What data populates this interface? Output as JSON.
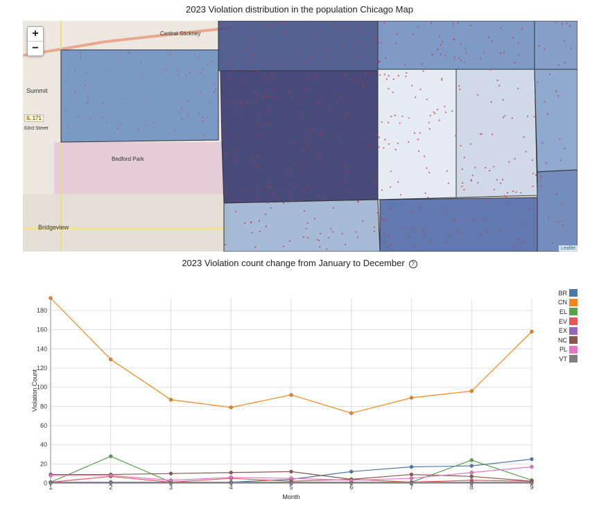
{
  "map": {
    "title": "2023 Violation distribution in the population Chicago Map",
    "zoom_in": "+",
    "zoom_out": "−",
    "attribution": "Leaflet",
    "labels": {
      "central_stickney": "Central Stickney",
      "summit": "Summit",
      "il171": "IL 171",
      "bedford_park": "Bedford Park",
      "bridgeview": "Bridgeview",
      "st63": "63rd Street"
    }
  },
  "chart": {
    "title": "2023 Violation count change from January to December",
    "help_icon": "?"
  },
  "chart_data": {
    "type": "line",
    "xlabel": "Month",
    "ylabel": "Violation Count",
    "x": [
      1,
      2,
      3,
      4,
      5,
      6,
      7,
      8,
      9
    ],
    "xlim": [
      1,
      9
    ],
    "ylim": [
      0,
      193
    ],
    "yticks": [
      0,
      20,
      40,
      60,
      80,
      100,
      120,
      140,
      160,
      180
    ],
    "grid": true,
    "legend_position": "right",
    "series": [
      {
        "name": "BR",
        "color": "#4c78a8",
        "values": [
          1,
          1,
          1,
          1,
          4,
          12,
          17,
          18,
          25
        ]
      },
      {
        "name": "CN",
        "color": "#f58518",
        "values": [
          193,
          129,
          87,
          79,
          92,
          73,
          89,
          96,
          158
        ]
      },
      {
        "name": "EL",
        "color": "#54a24b",
        "values": [
          1,
          28,
          1,
          1,
          1,
          1,
          1,
          24,
          3
        ]
      },
      {
        "name": "EV",
        "color": "#e45756",
        "values": [
          1,
          7,
          1,
          5,
          2,
          4,
          1,
          3,
          2
        ]
      },
      {
        "name": "EX",
        "color": "#9467bd",
        "values": [
          1,
          1,
          1,
          1,
          1,
          1,
          1,
          1,
          1
        ]
      },
      {
        "name": "NC",
        "color": "#8c564b",
        "values": [
          9,
          9,
          10,
          11,
          12,
          4,
          9,
          7,
          2
        ]
      },
      {
        "name": "PL",
        "color": "#e377c2",
        "values": [
          8,
          8,
          3,
          6,
          5,
          3,
          5,
          11,
          17
        ]
      },
      {
        "name": "VT",
        "color": "#7f7f7f",
        "values": [
          0,
          0,
          0,
          0,
          0,
          0,
          0,
          0,
          0
        ]
      }
    ]
  }
}
